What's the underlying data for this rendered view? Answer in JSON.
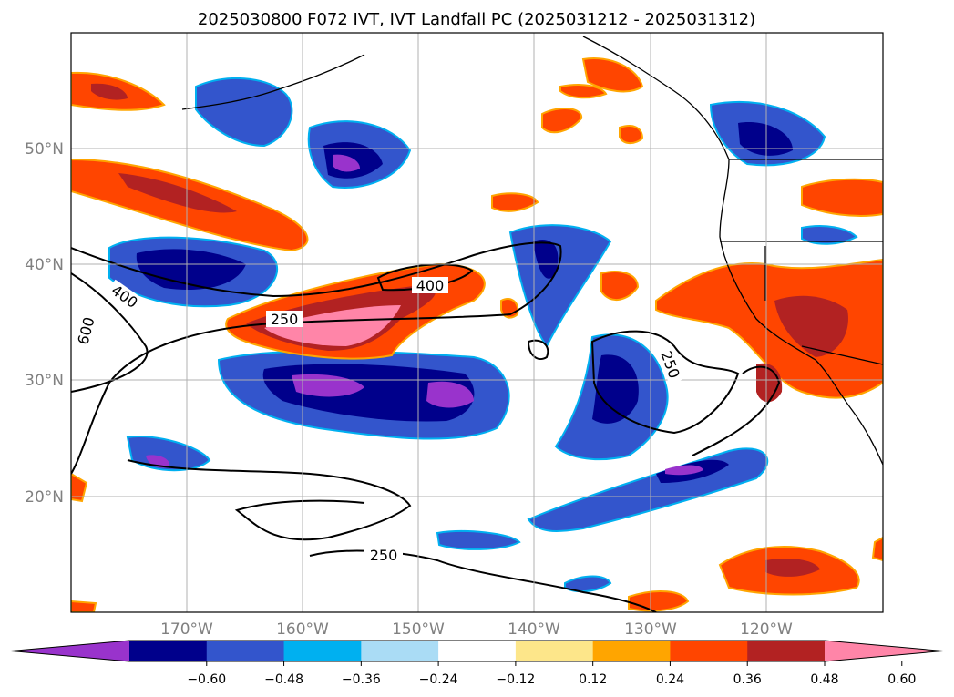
{
  "title": "2025030800 F072 IVT, IVT Landfall PC (2025031212 - 2025031312)",
  "map": {
    "lon_labels": [
      "170°W",
      "160°W",
      "150°W",
      "140°W",
      "130°W",
      "120°W"
    ],
    "lat_labels": [
      "50°N",
      "40°N",
      "30°N",
      "20°N"
    ],
    "gridlines": true,
    "background": "#ffffff"
  },
  "contours": {
    "color": "#000000",
    "labels": [
      "400",
      "600",
      "250",
      "400",
      "250",
      "250"
    ]
  },
  "colorbar": {
    "extend": "both",
    "colors": [
      "#9933cc",
      "#00008b",
      "#3355cc",
      "#00b0f0",
      "#aadcf5",
      "#ffffff",
      "#fde68a",
      "#ffa500",
      "#ff4500",
      "#b22222",
      "#ff85a8"
    ],
    "tick_labels": [
      "−0.60",
      "−0.48",
      "−0.36",
      "−0.24",
      "−0.12",
      "0.12",
      "0.24",
      "0.36",
      "0.48",
      "0.60"
    ]
  }
}
